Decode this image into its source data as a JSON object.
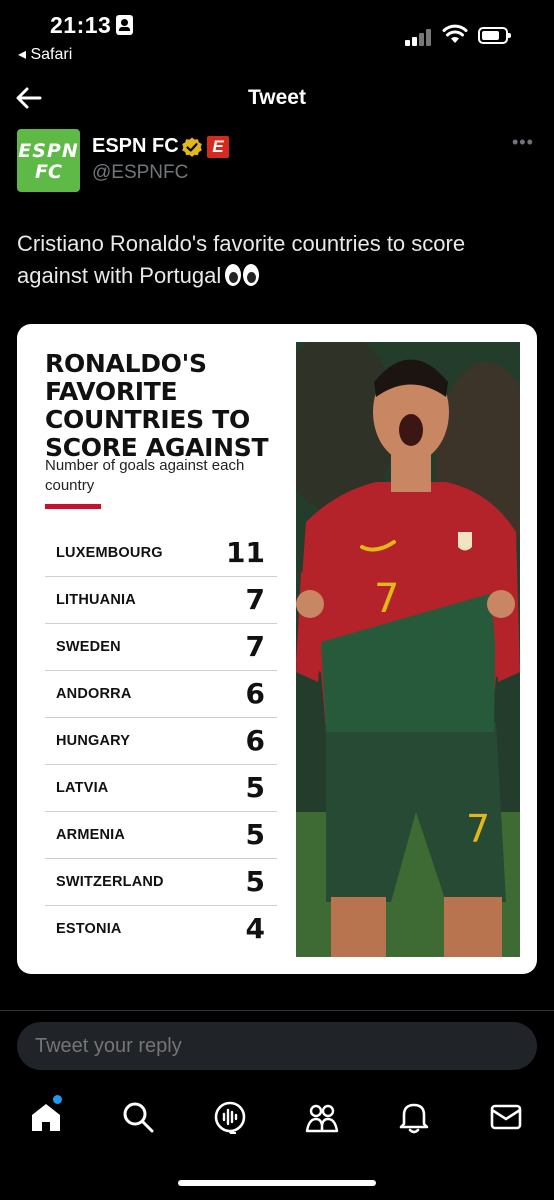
{
  "status_bar": {
    "time": "21:13",
    "back_app": "◂ Safari"
  },
  "header": {
    "title": "Tweet"
  },
  "author": {
    "name": "ESPN FC",
    "handle": "@ESPNFC",
    "avatar_line1": "ESPN",
    "avatar_line2": "FC",
    "badge_letter": "E"
  },
  "tweet": {
    "text": "Cristiano Ronaldo's favorite countries to score against with Portugal"
  },
  "card": {
    "title": "RONALDO'S FAVORITE COUNTRIES TO SCORE AGAINST",
    "subtitle": "Number of goals against each country",
    "rows": [
      {
        "country": "LUXEMBOURG",
        "goals": "11"
      },
      {
        "country": "LITHUANIA",
        "goals": "7"
      },
      {
        "country": "SWEDEN",
        "goals": "7"
      },
      {
        "country": "ANDORRA",
        "goals": "6"
      },
      {
        "country": "HUNGARY",
        "goals": "6"
      },
      {
        "country": "LATVIA",
        "goals": "5"
      },
      {
        "country": "ARMENIA",
        "goals": "5"
      },
      {
        "country": "SWITZERLAND",
        "goals": "5"
      },
      {
        "country": "ESTONIA",
        "goals": "4"
      }
    ],
    "jersey_number": "7"
  },
  "reply": {
    "placeholder": "Tweet your reply"
  },
  "tabs": [
    "home-icon",
    "search-icon",
    "spaces-icon",
    "communities-icon",
    "notifications-icon",
    "messages-icon"
  ],
  "colors": {
    "background": "#000000",
    "accent_blue": "#1d9bf0",
    "espn_green": "#5fb947",
    "espn_red": "#d52b1e",
    "verified_gold": "#e2b719",
    "card_red": "#c8102e"
  }
}
